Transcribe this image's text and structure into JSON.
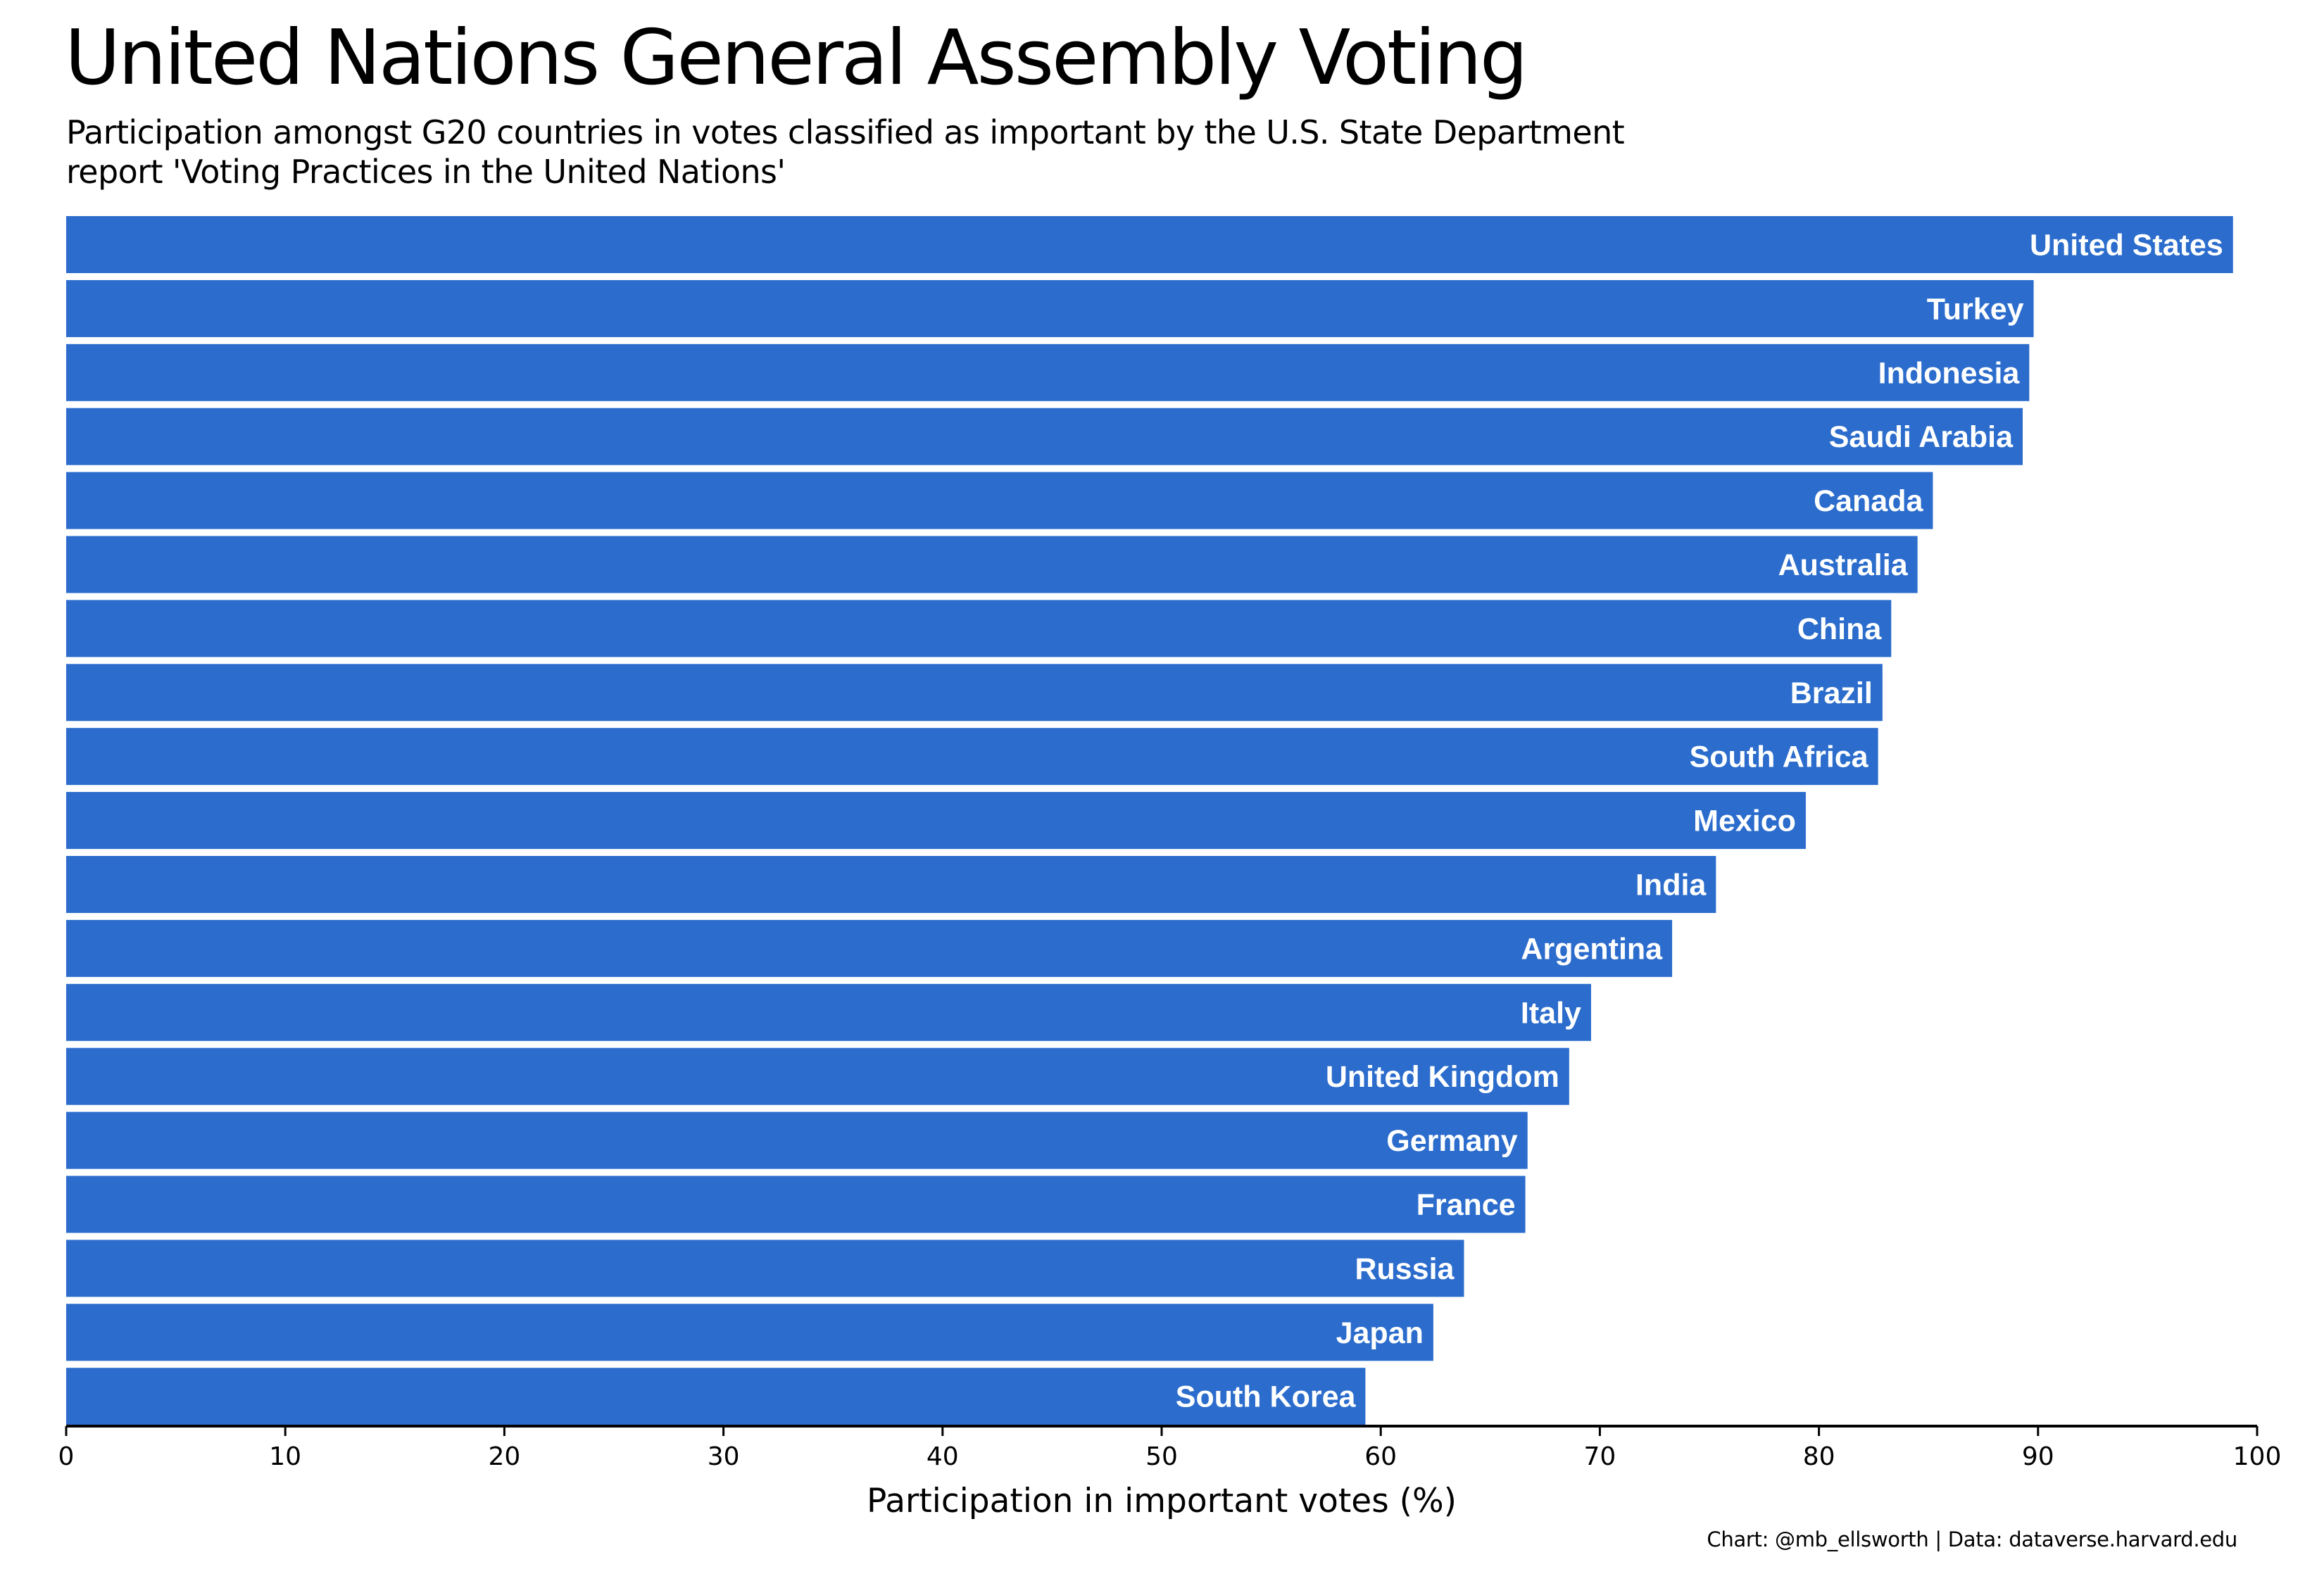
{
  "header": {
    "title": "United Nations General Assembly Voting",
    "subtitle": "Participation amongst G20 countries in votes classified as important by the U.S. State Department report 'Voting Practices in the United Nations'",
    "credit": "Chart: @mb_ellsworth | Data: dataverse.harvard.edu"
  },
  "colors": {
    "bar": "#2b6ccc",
    "bar_label": "#ffffff",
    "axis": "#000000"
  },
  "chart_data": {
    "type": "bar",
    "orientation": "horizontal",
    "categories": [
      "United States",
      "Turkey",
      "Indonesia",
      "Saudi Arabia",
      "Canada",
      "Australia",
      "China",
      "Brazil",
      "South Africa",
      "Mexico",
      "India",
      "Argentina",
      "Italy",
      "United Kingdom",
      "Germany",
      "France",
      "Russia",
      "Japan",
      "South Korea"
    ],
    "values": [
      98.9,
      89.8,
      89.6,
      89.3,
      85.2,
      84.5,
      83.3,
      82.9,
      82.7,
      79.4,
      75.3,
      73.3,
      69.6,
      68.6,
      66.7,
      66.6,
      63.8,
      62.4,
      59.3
    ],
    "xlabel": "Participation in important votes (%)",
    "ylabel": "",
    "xlim": [
      0,
      100
    ],
    "xticks": [
      "0",
      "10",
      "20",
      "30",
      "40",
      "50",
      "60",
      "70",
      "80",
      "90",
      "100"
    ],
    "grid": false,
    "legend": "none",
    "labels_inside_bars": true
  }
}
